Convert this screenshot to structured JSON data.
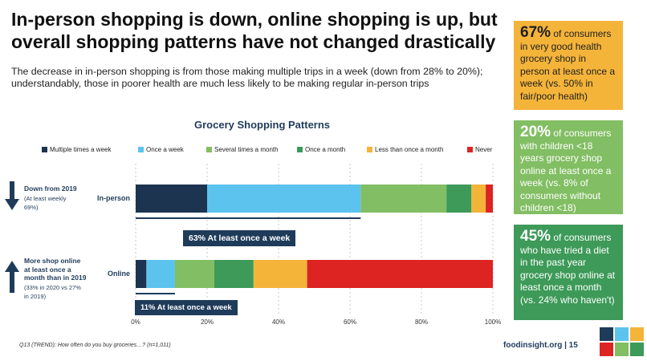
{
  "title": "In-person shopping is down, online shopping is up, but overall shopping patterns have not changed drastically",
  "subtitle": "The decrease in in-person shopping is from those making multiple trips in a week (down from 28% to 20%); understandably, those in poorer health are much less likely to be making regular in-person trips",
  "callouts": [
    {
      "value": "67%",
      "text": " of consumers in very good health grocery shop in person at least once a week (vs. 50% in fair/poor health)"
    },
    {
      "value": "20%",
      "text": " of consumers with children <18 years grocery shop online at least once a week (vs. 8% of consumers without children <18)"
    },
    {
      "value": "45%",
      "text": " of consumers who have tried a diet in the past year grocery shop online at least once a month (vs. 24% who haven't)"
    }
  ],
  "side_notes": {
    "in_person": {
      "main": "Down from 2019",
      "detail": " (At least weekly 69%)"
    },
    "online": {
      "main": "More shop online at least once a month than in 2019",
      "detail": " (33% in 2020 vs 27% in 2019)"
    }
  },
  "summaries": {
    "in_person": "63% At least once a week",
    "online": "11% At least once a week"
  },
  "footnote": "Q13 (TREND): How often do you buy groceries…? (n=1,011)",
  "brand": "foodinsight.org  |  15",
  "colors": {
    "navy": "#1F3B5A",
    "callout_orange": "#F4B43A",
    "callout_light_green": "#82BE63",
    "callout_dark_green": "#3D9A58"
  },
  "chart_data": {
    "type": "bar",
    "orientation": "horizontal",
    "stacked": true,
    "title": "Grocery Shopping Patterns",
    "categories": [
      "In-person",
      "Online"
    ],
    "series": [
      {
        "name": "Multiple times a week",
        "color": "#1C3450",
        "values": [
          20,
          3
        ]
      },
      {
        "name": "Once a week",
        "color": "#5BC3EE",
        "values": [
          43,
          8
        ]
      },
      {
        "name": "Several times a month",
        "color": "#82BE63",
        "values": [
          24,
          11
        ]
      },
      {
        "name": "Once a month",
        "color": "#3D9A58",
        "values": [
          7,
          11
        ]
      },
      {
        "name": "Less than once a month",
        "color": "#F4B43A",
        "values": [
          4,
          15
        ]
      },
      {
        "name": "Never",
        "color": "#DD2423",
        "values": [
          2,
          52
        ]
      }
    ],
    "xlim": [
      0,
      100
    ],
    "xticks": [
      "0%",
      "20%",
      "40%",
      "60%",
      "80%",
      "100%"
    ],
    "grid": "vertical dashed",
    "legend": "top"
  }
}
